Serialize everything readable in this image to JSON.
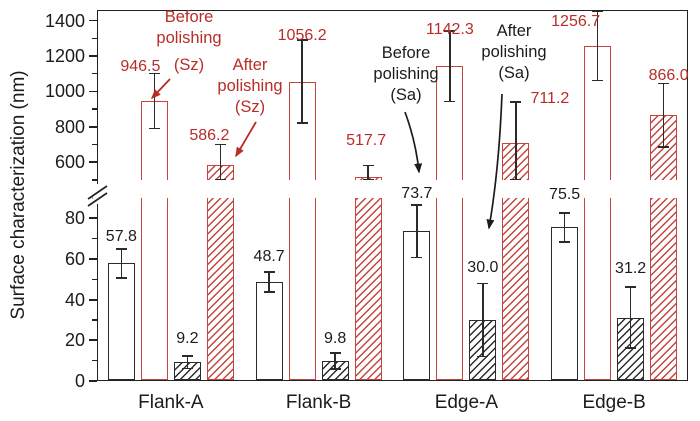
{
  "chart_data": {
    "type": "bar",
    "title": "",
    "ylabel": "Surface characterization (nm)",
    "categories": [
      "Flank-A",
      "Flank-B",
      "Edge-A",
      "Edge-B"
    ],
    "series": [
      {
        "name": "Before polishing (Sa)",
        "style": "black-open",
        "values": [
          57.8,
          48.7,
          73.7,
          75.5
        ],
        "labels": [
          "57.8",
          "48.7",
          "73.7",
          "75.5"
        ],
        "errors_est": [
          7,
          5,
          13,
          7
        ]
      },
      {
        "name": "Before polishing (Sz)",
        "style": "red-open",
        "values": [
          946.5,
          1056.2,
          1142.3,
          1256.7
        ],
        "labels": [
          "946.5",
          "1056.2",
          "1142.3",
          "1256.7"
        ],
        "errors_est": [
          155,
          235,
          200,
          195
        ]
      },
      {
        "name": "After polishing (Sa)",
        "style": "black-hatched",
        "values": [
          9.2,
          9.8,
          30.0,
          31.2
        ],
        "labels": [
          "9.2",
          "9.8",
          "30.0",
          "31.2"
        ],
        "errors_est": [
          3,
          4,
          18,
          15
        ]
      },
      {
        "name": "After polishing (Sz)",
        "style": "red-hatched",
        "values": [
          586.2,
          517.7,
          711.2,
          866.0
        ],
        "labels": [
          "586.2",
          "517.7",
          "711.2",
          "866.0"
        ],
        "errors_est": [
          115,
          65,
          230,
          180
        ]
      }
    ],
    "axis_break": {
      "lower_range": [
        0,
        90
      ],
      "upper_range": [
        500,
        1460
      ],
      "lower_major_ticks": [
        0,
        20,
        40,
        60,
        80
      ],
      "lower_minor_ticks": [
        10,
        30,
        50,
        70,
        90
      ],
      "upper_major_ticks": [
        600,
        800,
        1000,
        1200,
        1400
      ],
      "upper_minor_ticks": [
        500,
        700,
        900,
        1100,
        1300
      ]
    },
    "grid": false,
    "legend_position": "none (series identified by in-plot annotations with arrows)"
  },
  "annotations": [
    {
      "lines": [
        "Before",
        "polishing",
        "(Sz)"
      ],
      "color": "red",
      "points_to": "946.5"
    },
    {
      "lines": [
        "After",
        "polishing",
        "(Sz)"
      ],
      "color": "red",
      "points_to": "586.2"
    },
    {
      "lines": [
        "Before",
        "polishing",
        "(Sa)"
      ],
      "color": "black",
      "points_to": "73.7"
    },
    {
      "lines": [
        "After",
        "polishing",
        "(Sa)"
      ],
      "color": "black",
      "points_to": "30.0"
    }
  ],
  "colors": {
    "red_bar": "#c4453d",
    "red_text": "#b92d27",
    "black_bar": "#2b2b2b",
    "black_text": "#1c1c1c",
    "error_bar": "#2b2b2b",
    "background": "#ffffff"
  }
}
